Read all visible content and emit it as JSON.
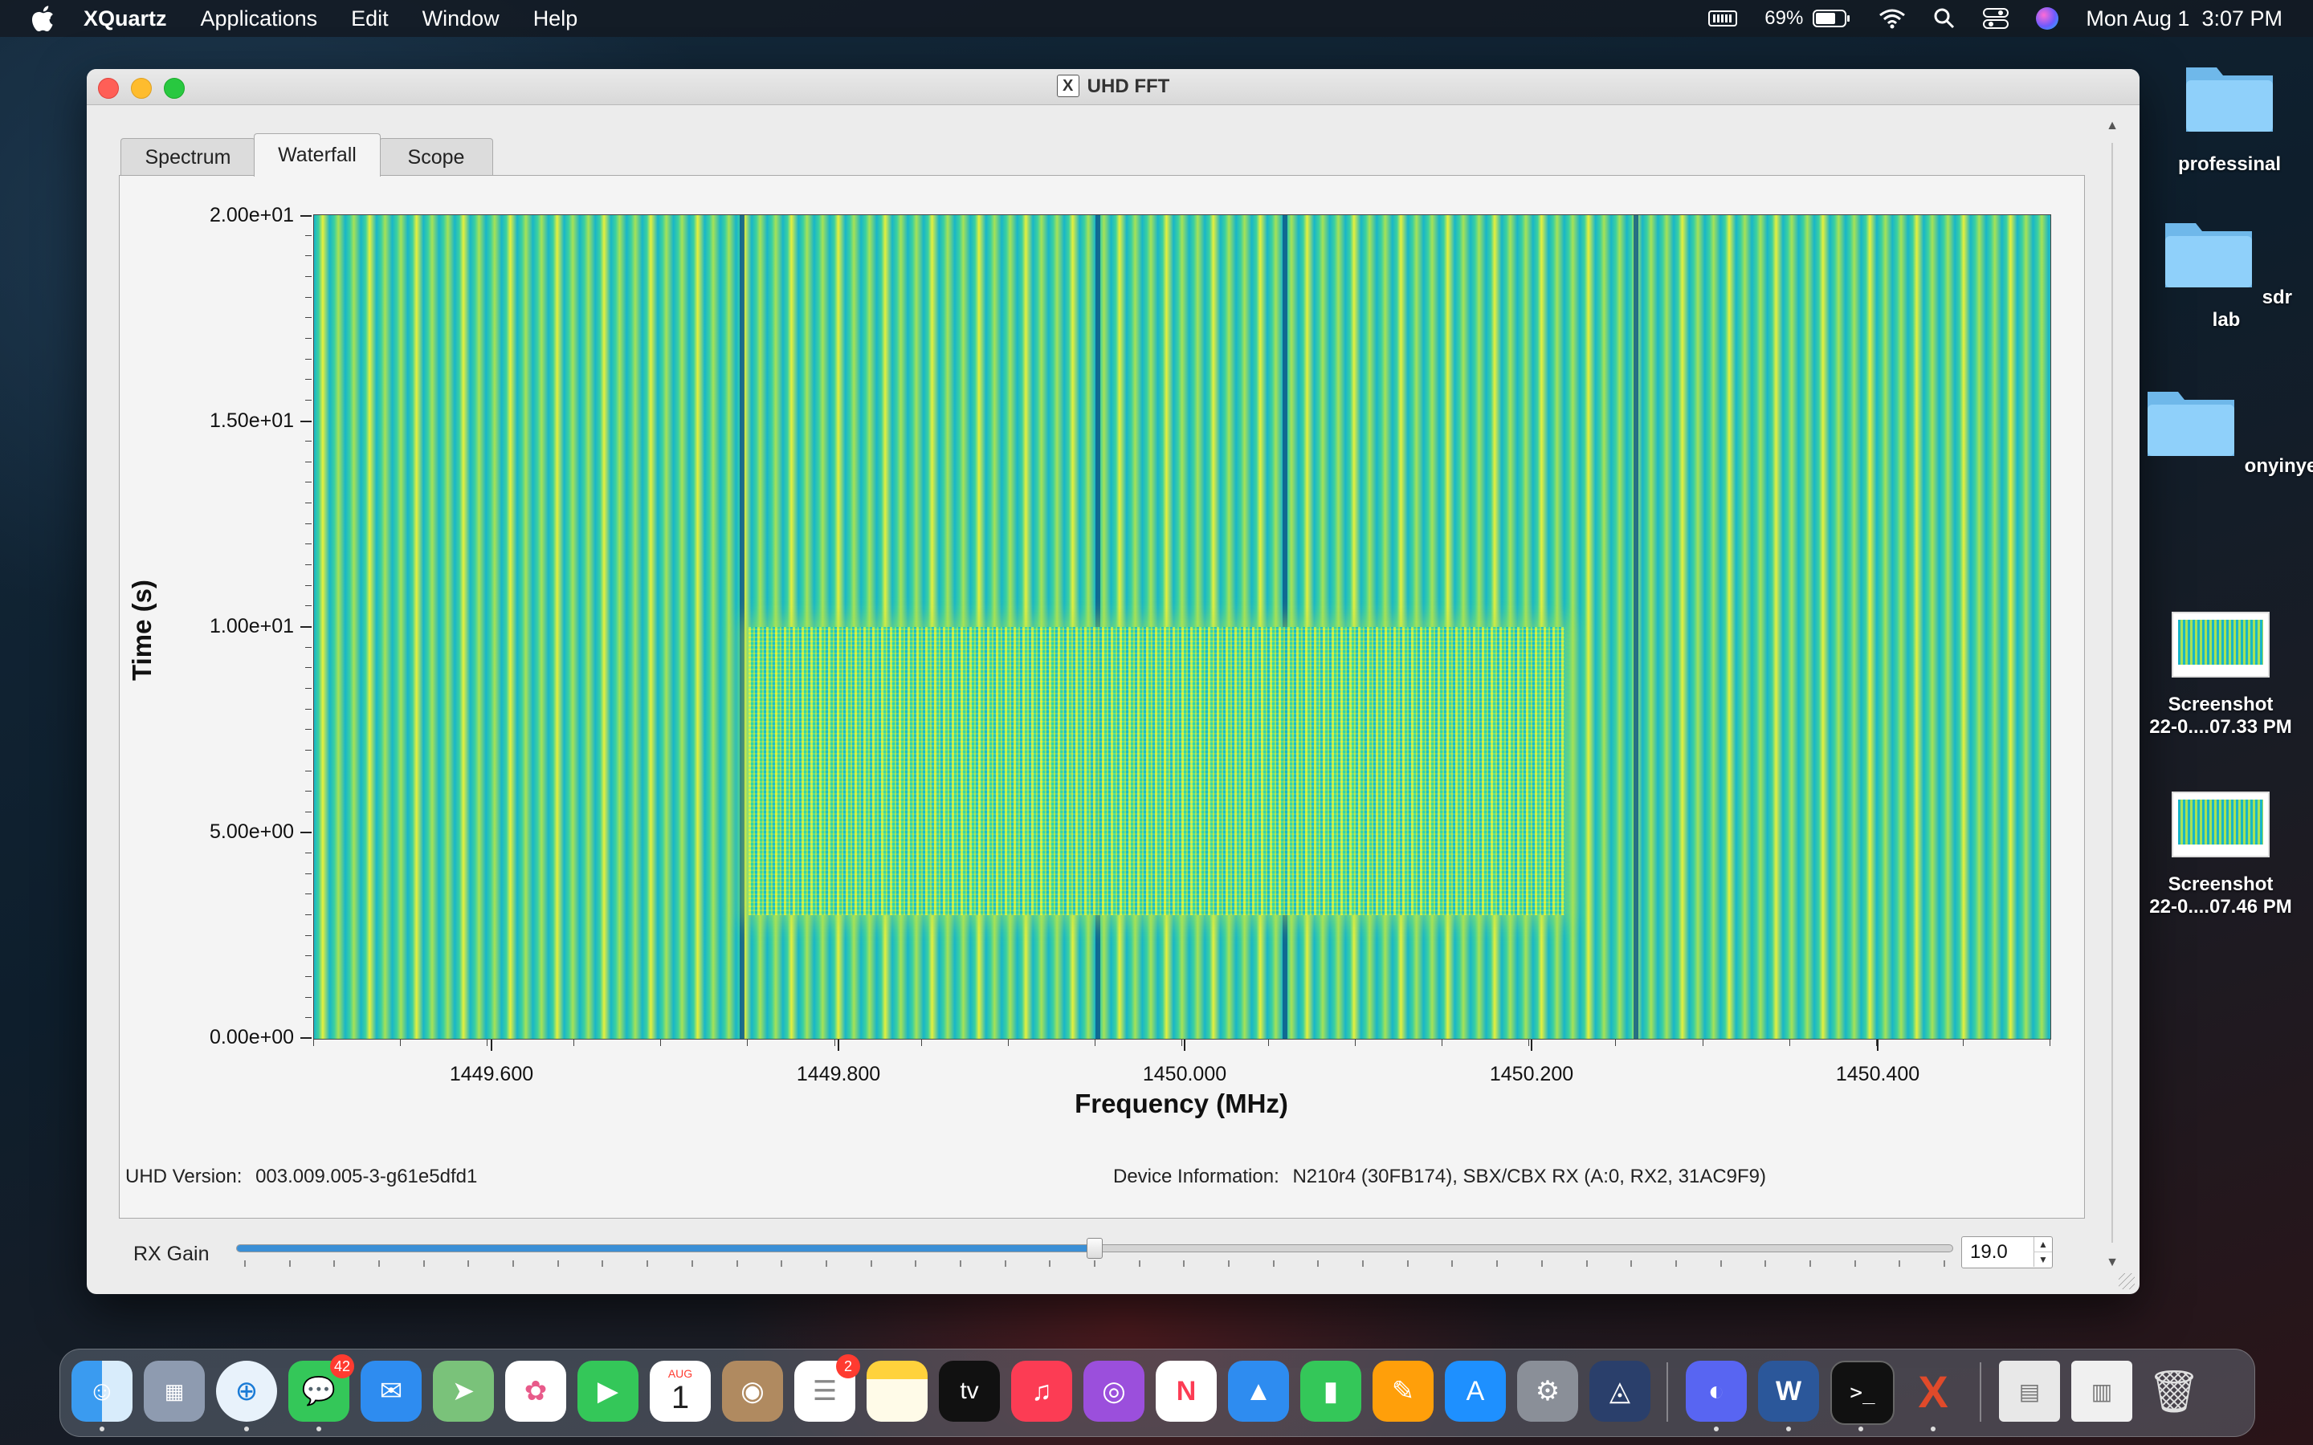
{
  "menubar": {
    "app_name": "XQuartz",
    "menus": [
      "Applications",
      "Edit",
      "Window",
      "Help"
    ],
    "battery_percent": "69%",
    "clock": "Mon Aug 1  3:07 PM"
  },
  "window": {
    "title": "UHD FFT",
    "tabs": [
      {
        "label": "Spectrum",
        "active": false
      },
      {
        "label": "Waterfall",
        "active": true
      },
      {
        "label": "Scope",
        "active": false
      }
    ],
    "uhd_version_label": "UHD Version:",
    "uhd_version_value": "003.009.005-3-g61e5dfd1",
    "device_info_label": "Device Information:",
    "device_info_value": "N210r4 (30FB174), SBX/CBX RX (A:0, RX2, 31AC9F9)",
    "rx_gain_label": "RX Gain",
    "rx_gain_value": "19.0",
    "rx_gain_fraction": 0.5
  },
  "chart_data": {
    "type": "heatmap",
    "xlabel": "Frequency (MHz)",
    "ylabel": "Time (s)",
    "xlim": [
      1449.5,
      1450.5
    ],
    "ylim": [
      0,
      20
    ],
    "x_ticks": [
      "1449.600",
      "1449.800",
      "1450.000",
      "1450.200",
      "1450.400"
    ],
    "x_tick_values": [
      1449.6,
      1449.8,
      1450.0,
      1450.2,
      1450.4
    ],
    "y_ticks": [
      "0.00e+00",
      "5.00e+00",
      "1.00e+01",
      "1.50e+01",
      "2.00e+01"
    ],
    "y_tick_values": [
      0,
      5,
      10,
      15,
      20
    ],
    "colormap": [
      "#0a5a8c",
      "#18b6c8",
      "#3cd0a0",
      "#a6e256",
      "#e6f03c"
    ],
    "background_pattern": "vertical bands (periodic narrowband components)",
    "burst": {
      "freq_range": [
        1449.75,
        1450.22
      ],
      "time_range": [
        3,
        10
      ]
    },
    "dark_lines_mhz": [
      1449.745,
      1449.95,
      1450.058,
      1450.26
    ]
  },
  "desktop": {
    "folders": [
      "professinal",
      "sdr lab",
      "onyinye's website"
    ],
    "screenshots": [
      {
        "line1": "Screenshot",
        "line2": "22-0....07.33 PM"
      },
      {
        "line1": "Screenshot",
        "line2": "22-0....07.46 PM"
      }
    ]
  },
  "dock": {
    "apps": [
      "Finder",
      "Launchpad",
      "Safari",
      "Messages",
      "Mail",
      "Maps",
      "Photos",
      "FaceTime",
      "Calendar",
      "Contacts",
      "Reminders",
      "Notes",
      "TV",
      "Music",
      "Podcasts",
      "News",
      "Keynote",
      "Numbers",
      "Pages",
      "App Store",
      "System Preferences",
      "Xcode Instruments",
      "Discord",
      "Word",
      "Terminal",
      "XQuartz",
      "Documents",
      "Downloads",
      "Trash"
    ],
    "messages_badge": "42",
    "reminders_badge": "2",
    "calendar_month": "AUG",
    "calendar_day": "1",
    "tv_label": "tv"
  }
}
